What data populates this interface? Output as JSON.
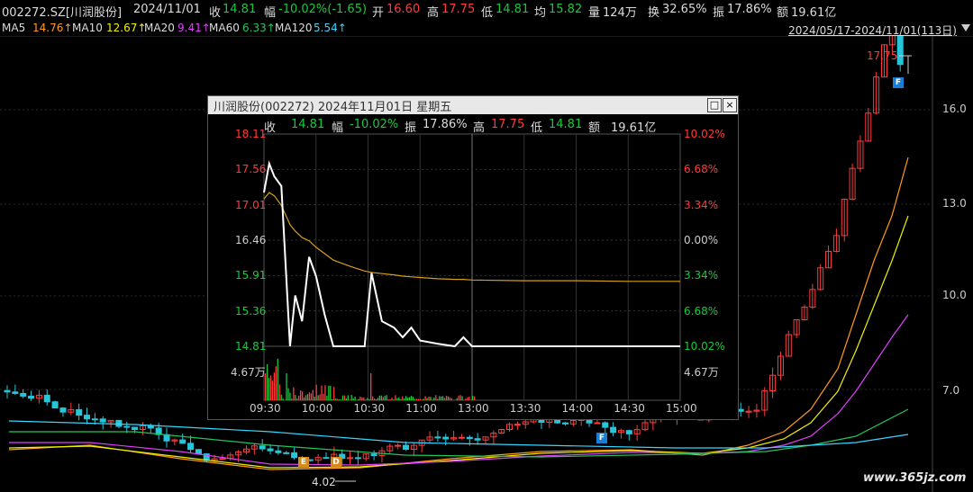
{
  "header": {
    "code": "002272.SZ[川润股份]",
    "date": "2024/11/01",
    "close_label": "收",
    "close": "14.81",
    "change_label": "幅",
    "change": "-10.02%(-1.65)",
    "open_label": "开",
    "open": "16.60",
    "high_label": "高",
    "high": "17.75",
    "low_label": "低",
    "low": "14.81",
    "avg_label": "均",
    "avg": "15.82",
    "volume_label": "量",
    "volume": "124万",
    "turnover_label": "换",
    "turnover": "32.65%",
    "amplitude_label": "振",
    "amplitude": "17.86%",
    "amount_label": "额",
    "amount": "19.61亿"
  },
  "ma_row": {
    "ma5_label": "MA5",
    "ma5": "14.76↑",
    "ma10_label": "MA10",
    "ma10": "12.67↑",
    "ma20_label": "MA20",
    "ma20": "9.41↑",
    "ma60_label": "MA60",
    "ma60": "6.33↑",
    "ma120_label": "MA120",
    "ma120": "5.54↑",
    "range": "2024/05/17-2024/11/01(113日)"
  },
  "colors": {
    "up": "#ff3b3b",
    "down": "#19c93c",
    "ma5": "#ff9b1a",
    "ma10": "#f0f000",
    "ma20": "#e040fb",
    "ma60": "#22c55e",
    "ma120": "#35d6ff",
    "price_line": "#ffffff",
    "avg_line": "#d4a017"
  },
  "main_chart": {
    "y_ticks": [
      "16.0",
      "13.0",
      "10.0",
      "7.0"
    ],
    "high_marker": "17.75",
    "low_marker": "4.02",
    "flags": [
      "F",
      "E",
      "D",
      "F"
    ],
    "watermark": "www.365jz.com"
  },
  "popup": {
    "title": "川润股份(002272) 2024年11月01日 星期五",
    "restore_button": "□",
    "close_button": "×",
    "info": {
      "close_label": "收",
      "close": "14.81",
      "change_label": "幅",
      "change": "-10.02%",
      "amplitude_label": "振",
      "amplitude": "17.86%",
      "high_label": "高",
      "high": "17.75",
      "low_label": "低",
      "low": "14.81",
      "amount_label": "额",
      "amount": "19.61亿"
    },
    "left_ticks": [
      "18.11",
      "17.56",
      "17.01",
      "16.46",
      "15.91",
      "15.36",
      "14.81"
    ],
    "right_ticks": [
      "10.02%",
      "6.68%",
      "3.34%",
      "0.00%",
      "3.34%",
      "6.68%",
      "10.02%"
    ],
    "volume_label_left": "4.67万",
    "volume_label_right": "4.67万",
    "time_ticks": [
      "09:30",
      "10:00",
      "10:30",
      "11:00",
      "13:00",
      "13:30",
      "14:00",
      "14:30",
      "15:00"
    ]
  },
  "chart_data": {
    "type": "line",
    "title": "川润股份(002272) 2024年11月01日 星期五",
    "xlabel": "",
    "ylabel": "",
    "ylim": [
      14.81,
      18.11
    ],
    "x": [
      "09:30",
      "09:33",
      "09:36",
      "09:40",
      "09:45",
      "09:48",
      "09:52",
      "09:56",
      "10:00",
      "10:05",
      "10:10",
      "10:20",
      "10:28",
      "10:32",
      "10:38",
      "10:45",
      "10:50",
      "10:55",
      "11:00",
      "11:10",
      "11:20",
      "11:25",
      "11:30",
      "13:00",
      "13:30",
      "14:00",
      "14:30",
      "15:00"
    ],
    "series": [
      {
        "values": [
          17.2,
          17.65,
          17.45,
          17.3,
          14.81,
          15.6,
          15.2,
          16.2,
          15.9,
          15.3,
          14.81,
          14.81,
          14.81,
          15.95,
          15.2,
          15.1,
          14.95,
          15.1,
          14.9,
          14.85,
          14.81,
          14.95,
          14.81,
          14.81,
          14.81,
          14.81,
          14.81,
          14.81
        ]
      },
      {
        "values": [
          17.1,
          17.2,
          17.15,
          17.0,
          16.7,
          16.6,
          16.5,
          16.45,
          16.35,
          16.25,
          16.15,
          16.05,
          15.98,
          15.96,
          15.94,
          15.92,
          15.9,
          15.89,
          15.88,
          15.86,
          15.85,
          15.85,
          15.84,
          15.84,
          15.83,
          15.83,
          15.82,
          15.82
        ]
      }
    ]
  }
}
